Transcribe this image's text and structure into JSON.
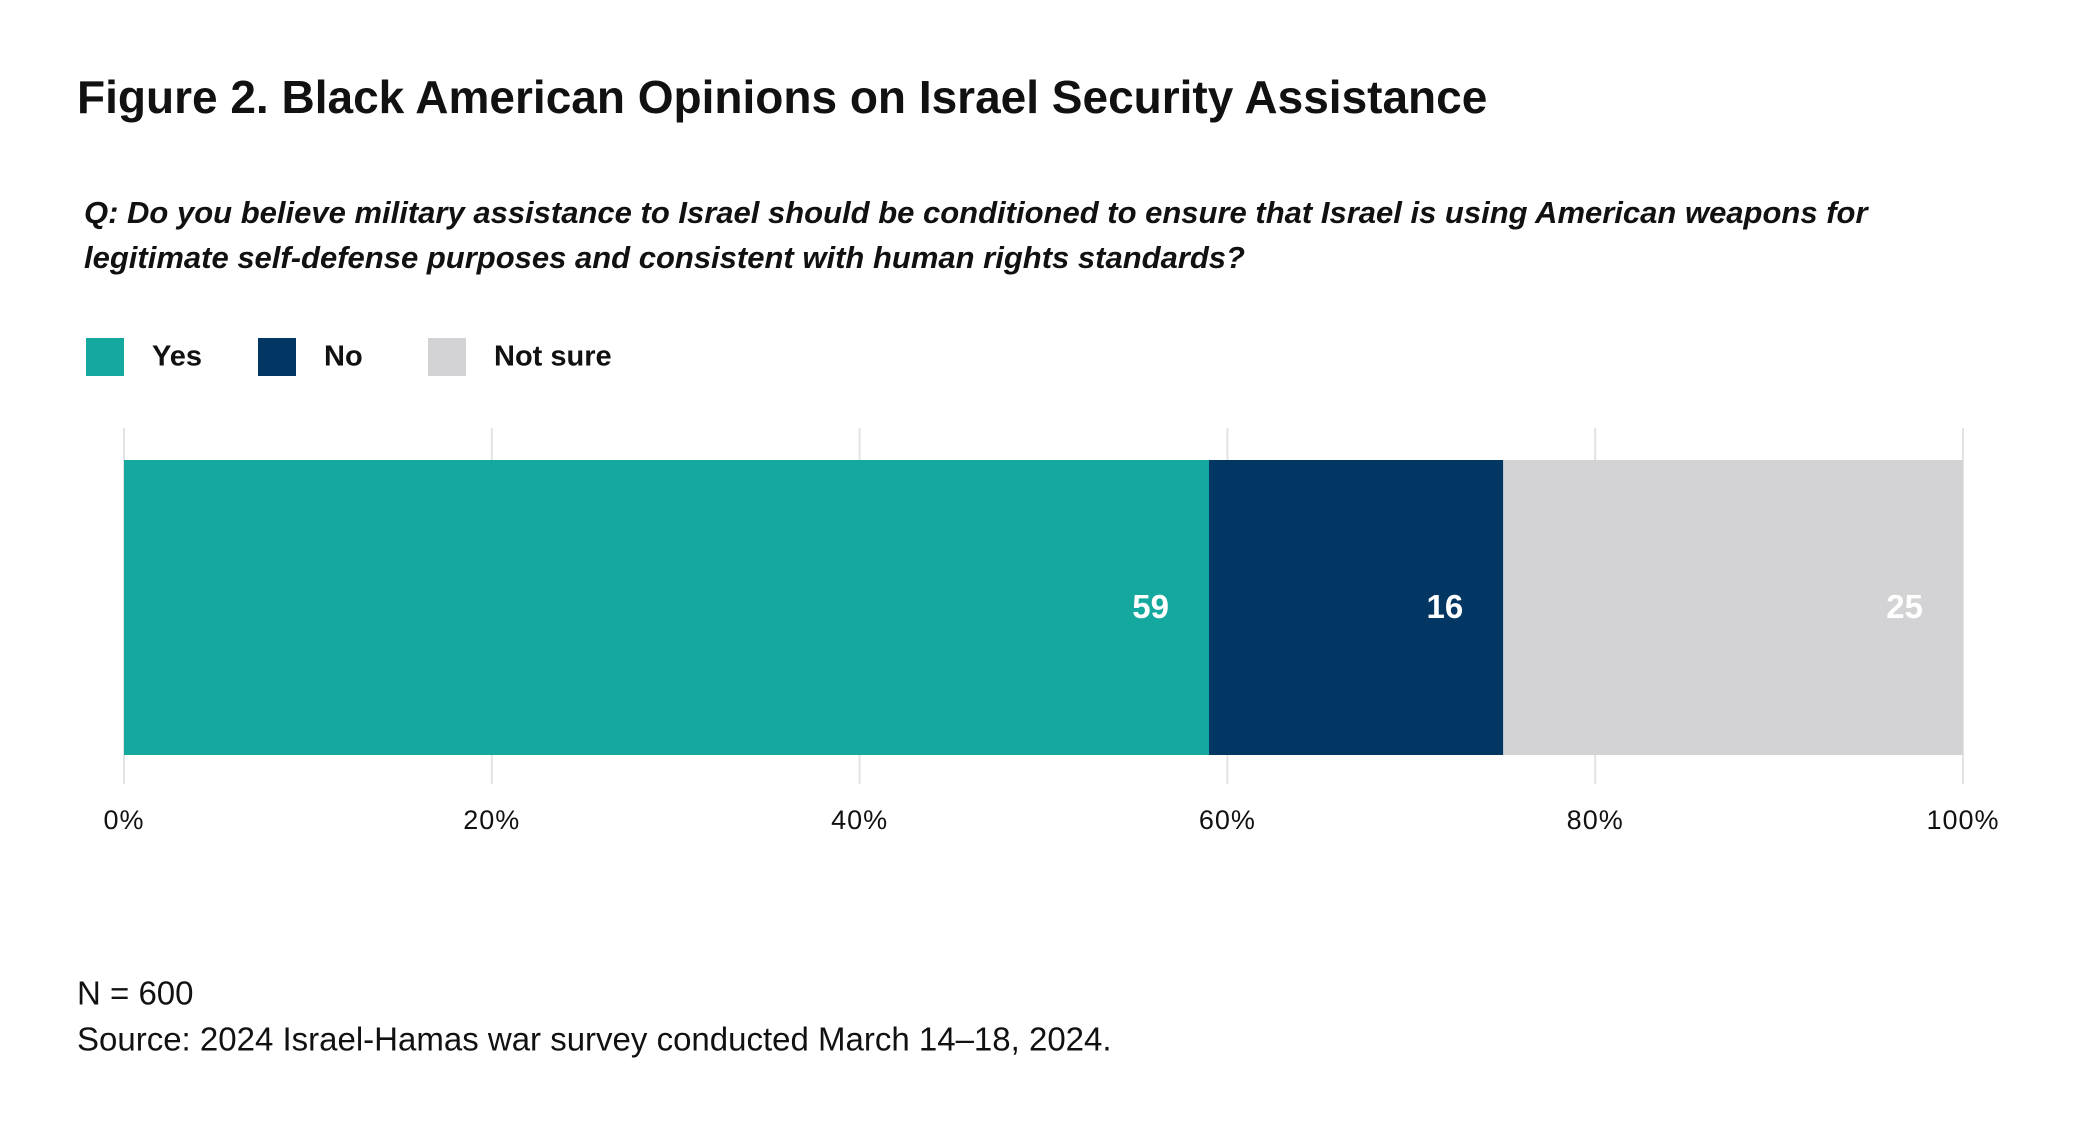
{
  "chart_data": {
    "type": "stacked-bar-horizontal",
    "title": "Figure 2. Black American Opinions on Israel Security Assistance",
    "subtitle": [
      "Q:  Do you believe military assistance to Israel should be conditioned to ensure that Israel is using American weapons for",
      "legitimate self-defense purposes and consistent with human rights standards?"
    ],
    "categories": [
      null
    ],
    "series": [
      {
        "name": "Yes",
        "color": "#14a89e",
        "values": [
          59
        ]
      },
      {
        "name": "No",
        "color": "#023764",
        "values": [
          16
        ]
      },
      {
        "name": "Not sure",
        "color": "#d3d3d5",
        "values": [
          25
        ]
      }
    ],
    "xlim": [
      0,
      100
    ],
    "xticks": [
      {
        "value": 0,
        "label": "0%"
      },
      {
        "value": 20,
        "label": "20%"
      },
      {
        "value": 40,
        "label": "40%"
      },
      {
        "value": 60,
        "label": "60%"
      },
      {
        "value": 80,
        "label": "80%"
      },
      {
        "value": 100,
        "label": "100%"
      }
    ],
    "grid": true,
    "legend": "top-left",
    "note": "N = 600",
    "source": "Source: 2024 Israel-Hamas war survey conducted March 14–18, 2024."
  }
}
